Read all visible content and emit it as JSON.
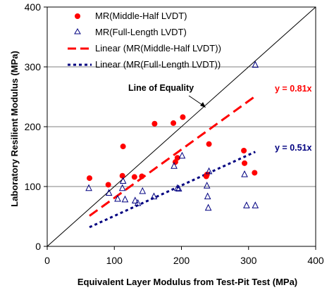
{
  "chart_data": {
    "type": "scatter",
    "xlabel": "Equivalent Layer Modulus from Test-Pit Test (MPa)",
    "ylabel": "Laboratory Resilient Modulus (MPa)",
    "xlim": [
      0,
      400
    ],
    "ylim": [
      0,
      400
    ],
    "xticks": [
      "0",
      "100",
      "200",
      "300",
      "400"
    ],
    "yticks": [
      "0",
      "100",
      "200",
      "300",
      "400"
    ],
    "grid": "horizontal",
    "legend": [
      {
        "label": "MR(Middle-Half LVDT)",
        "marker": "filled-circle",
        "color": "#ff0000"
      },
      {
        "label": "MR(Full-Length LVDT)",
        "marker": "open-triangle",
        "color": "#000080"
      },
      {
        "label": "Linear (MR(Middle-Half LVDT))",
        "marker": "dashed-line",
        "color": "#ff0000"
      },
      {
        "label": "Linear (MR(Full-Length LVDT))",
        "marker": "dotted-line",
        "color": "#000080"
      }
    ],
    "series": [
      {
        "name": "MR(Middle-Half LVDT)",
        "color": "#ff0000",
        "marker": "circle",
        "points": [
          [
            63,
            114
          ],
          [
            91,
            103
          ],
          [
            112,
            118
          ],
          [
            113,
            167
          ],
          [
            130,
            116
          ],
          [
            141,
            117
          ],
          [
            160,
            205
          ],
          [
            191,
            141
          ],
          [
            194,
            148
          ],
          [
            188,
            206
          ],
          [
            202,
            216
          ],
          [
            237,
            117
          ],
          [
            238,
            120
          ],
          [
            241,
            171
          ],
          [
            293,
            160
          ],
          [
            294,
            139
          ],
          [
            309,
            123
          ]
        ]
      },
      {
        "name": "MR(Full-Length LVDT)",
        "color": "#000080",
        "marker": "triangle",
        "points": [
          [
            62,
            98
          ],
          [
            92,
            90
          ],
          [
            105,
            80
          ],
          [
            112,
            98
          ],
          [
            113,
            110
          ],
          [
            116,
            79
          ],
          [
            131,
            77
          ],
          [
            135,
            73
          ],
          [
            142,
            93
          ],
          [
            159,
            84
          ],
          [
            189,
            135
          ],
          [
            194,
            98
          ],
          [
            196,
            97
          ],
          [
            201,
            152
          ],
          [
            238,
            102
          ],
          [
            239,
            84
          ],
          [
            240,
            65
          ],
          [
            241,
            126
          ],
          [
            294,
            121
          ],
          [
            297,
            69
          ],
          [
            310,
            69
          ],
          [
            310,
            304
          ]
        ]
      }
    ],
    "lines": [
      {
        "name": "Line of Equality",
        "x": [
          0,
          400
        ],
        "y": [
          0,
          400
        ],
        "color": "#000000",
        "style": "solid"
      },
      {
        "name": "Linear (MR(Middle-Half LVDT))",
        "x": [
          63,
          310
        ],
        "y": [
          51,
          251
        ],
        "color": "#ff0000",
        "style": "dashed"
      },
      {
        "name": "Linear (MR(Full-Length LVDT))",
        "x": [
          63,
          310
        ],
        "y": [
          32,
          158
        ],
        "color": "#000080",
        "style": "dotted"
      }
    ],
    "annotations": [
      {
        "text": "Line of Equality",
        "color": "#000000"
      },
      {
        "text": "y = 0.81x",
        "color": "#ff0000"
      },
      {
        "text": "y = 0.51x",
        "color": "#000080"
      }
    ]
  }
}
